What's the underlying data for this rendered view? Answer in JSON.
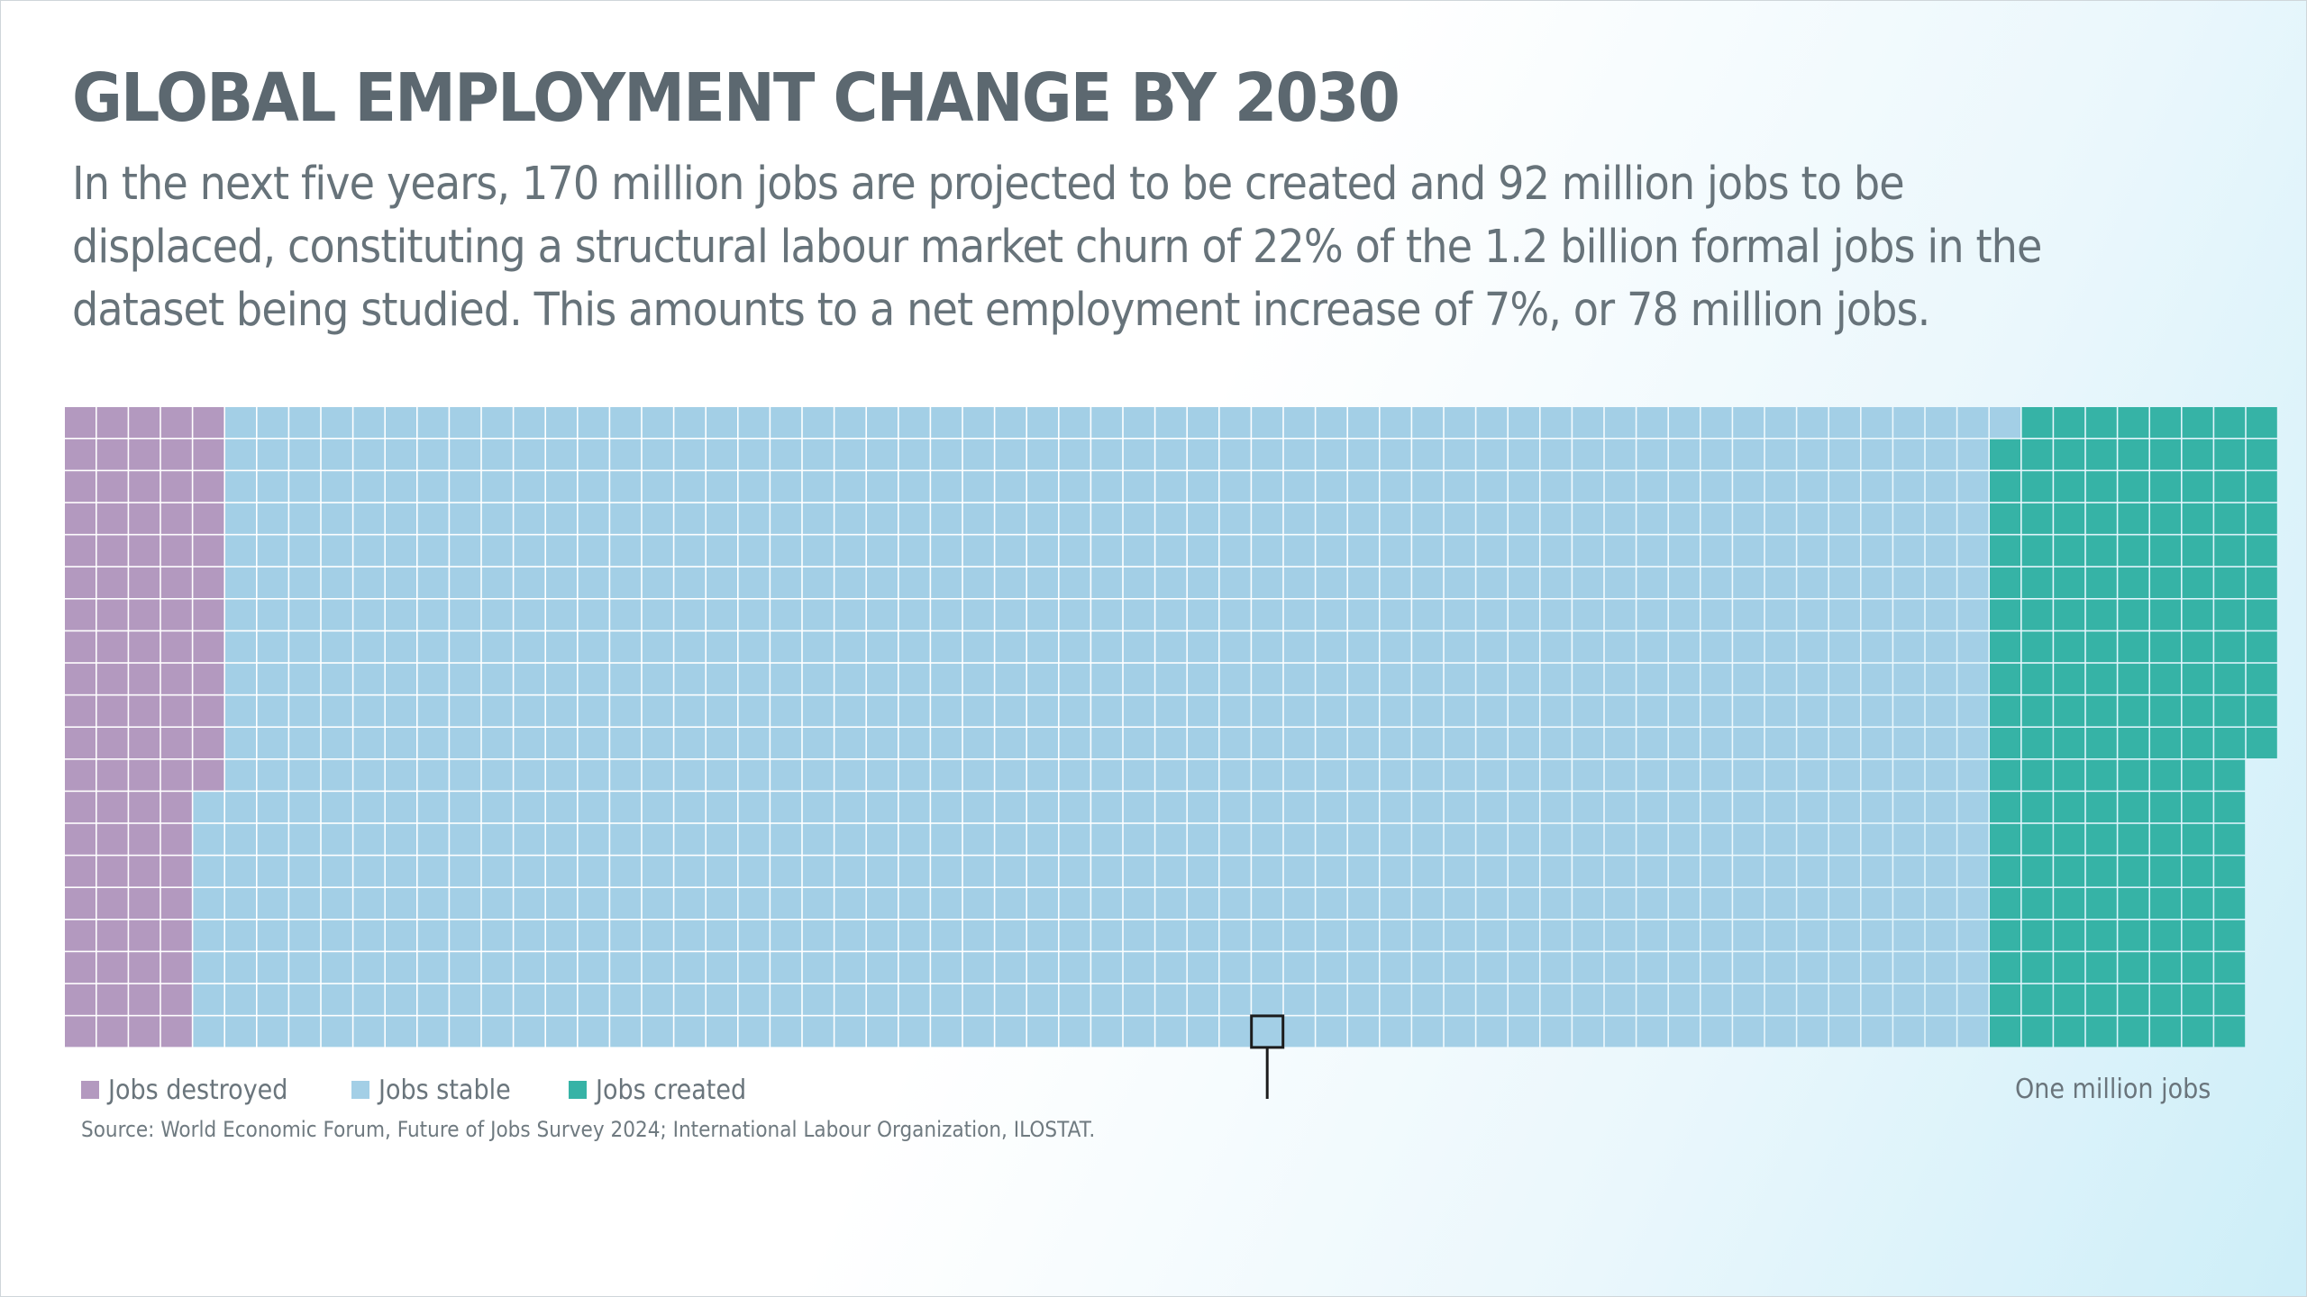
{
  "header": {
    "title": "GLOBAL EMPLOYMENT CHANGE BY 2030",
    "subtitle": "In the next five years, 170 million jobs are projected to be created and 92 million jobs to be displaced, constituting a structural labour market churn of 22% of the 1.2 billion formal jobs in the dataset being studied. This amounts to a net employment increase of 7%, or 78 million jobs."
  },
  "chart_data": {
    "type": "waffle",
    "unit": "One million jobs",
    "categories": [
      {
        "name": "Jobs destroyed",
        "cells": 92,
        "color": "#b399bf"
      },
      {
        "name": "Jobs stable",
        "cells": 1109,
        "color": "#a3cfe6"
      },
      {
        "name": "Jobs created",
        "cells": 170,
        "color": "#36b3a6"
      }
    ]
  },
  "legend": {
    "items": [
      {
        "label": "Jobs destroyed",
        "color": "#b399bf"
      },
      {
        "label": "Jobs stable",
        "color": "#a3cfe6"
      },
      {
        "label": "Jobs created",
        "color": "#36b3a6"
      }
    ],
    "unit_label": "One million jobs"
  },
  "footer": {
    "source": "Source: World Economic Forum, Future of Jobs Survey 2024; International Labour Organization, ILOSTAT."
  }
}
